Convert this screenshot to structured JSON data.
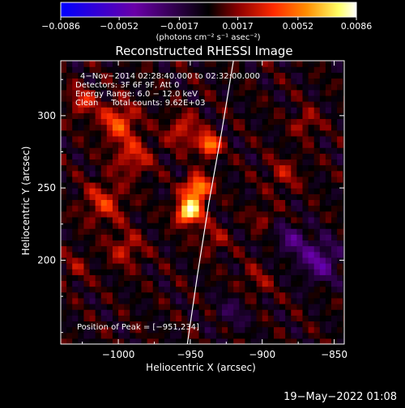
{
  "chart_data": {
    "type": "heatmap",
    "title": "Reconstructed RHESSI Image",
    "xlabel": "Heliocentric X (arcsec)",
    "ylabel": "Heliocentric Y (arcsec)",
    "xlim": [
      -1040,
      -843
    ],
    "ylim": [
      142,
      338
    ],
    "x_ticks": [
      -1000,
      -950,
      -900,
      -850
    ],
    "x_tick_labels": [
      "−1000",
      "−950",
      "−900",
      "−850"
    ],
    "y_ticks": [
      200,
      250,
      300
    ],
    "y_tick_labels": [
      "200",
      "250",
      "300"
    ],
    "colorbar": {
      "range": [
        -0.0086,
        0.0086
      ],
      "ticks": [
        -0.0086,
        -0.0052,
        -0.0017,
        0.0017,
        0.0052,
        0.0086
      ],
      "tick_labels": [
        "−0.0086",
        "−0.0052",
        "−0.0017",
        "0.0017",
        "0.0052",
        "0.0086"
      ],
      "unit_label": "(photons cm⁻² s⁻¹ asec⁻²)",
      "colors": [
        "#0000ff",
        "#6a00a8",
        "#000000",
        "#8b0000",
        "#ff2a00",
        "#ff8c00",
        "#ffff66",
        "#ffffff"
      ]
    },
    "annotations": {
      "time": "4−Nov−2014 02:28:40.000 to 02:32:00.000",
      "detectors": "Detectors: 3F 6F 9F, Att 0",
      "energy": "Energy Range: 6.0 − 12.0 keV",
      "clean": "Clean     Total counts: 9.62E+03",
      "peak": "Position of Peak = [−951,234]"
    },
    "peak_position": [
      -951,
      234
    ],
    "sources": [
      {
        "x": -951,
        "y": 234,
        "peak": 0.0086,
        "sigma": 6
      },
      {
        "x": -945,
        "y": 250,
        "peak": 0.0068,
        "sigma": 6
      },
      {
        "x": -937,
        "y": 280,
        "peak": 0.0062,
        "sigma": 5
      },
      {
        "x": -1000,
        "y": 296,
        "peak": 0.004,
        "sigma": 9
      },
      {
        "x": -1010,
        "y": 240,
        "peak": 0.003,
        "sigma": 10
      },
      {
        "x": -990,
        "y": 272,
        "peak": 0.003,
        "sigma": 9
      },
      {
        "x": -955,
        "y": 290,
        "peak": 0.003,
        "sigma": 8
      },
      {
        "x": -995,
        "y": 208,
        "peak": 0.0026,
        "sigma": 8
      },
      {
        "x": -1025,
        "y": 310,
        "peak": 0.003,
        "sigma": 7
      },
      {
        "x": -885,
        "y": 260,
        "peak": 0.002,
        "sigma": 8
      },
      {
        "x": -870,
        "y": 295,
        "peak": 0.0024,
        "sigma": 6
      },
      {
        "x": -935,
        "y": 215,
        "peak": 0.002,
        "sigma": 7
      },
      {
        "x": -905,
        "y": 185,
        "peak": 0.0016,
        "sigma": 8
      },
      {
        "x": -900,
        "y": 230,
        "peak": 0.0016,
        "sigma": 6
      },
      {
        "x": -1030,
        "y": 195,
        "peak": 0.0015,
        "sigma": 7
      },
      {
        "x": -860,
        "y": 200,
        "peak": -0.0035,
        "sigma": 10
      },
      {
        "x": -880,
        "y": 215,
        "peak": -0.0025,
        "sigma": 8
      },
      {
        "x": -920,
        "y": 165,
        "peak": -0.0015,
        "sigma": 9
      }
    ],
    "limb_curve": [
      [
        -952,
        142
      ],
      [
        -945,
        190
      ],
      [
        -937,
        240
      ],
      [
        -928,
        290
      ],
      [
        -920,
        338
      ]
    ]
  },
  "footer": {
    "date": "19−May−2022 01:08"
  }
}
